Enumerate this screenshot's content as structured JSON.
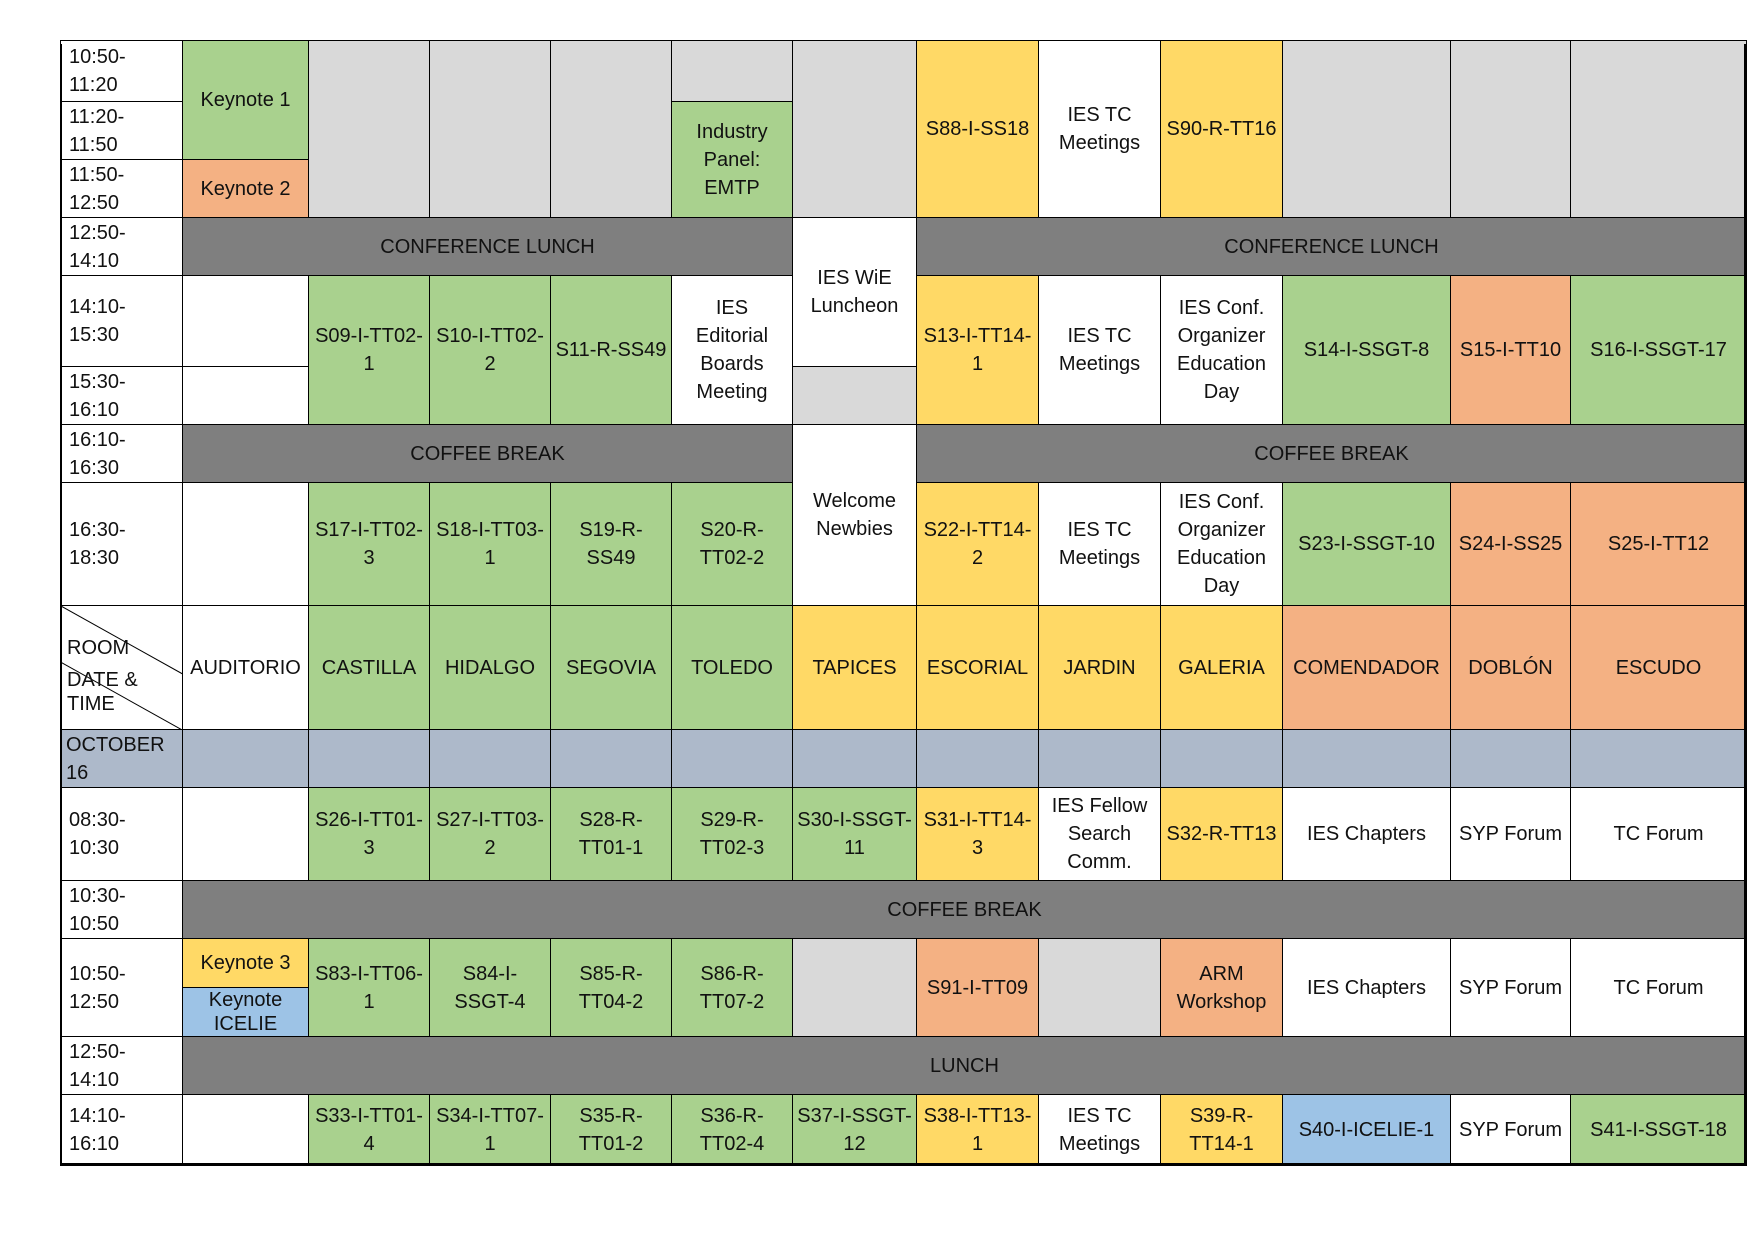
{
  "colors": {
    "green": "#a9d18e",
    "yellow": "#ffd966",
    "orange": "#f4b183",
    "gray": "#d9d9d9",
    "dark": "#7f7f7f",
    "date": "#adb9ca",
    "blue": "#9dc3e6",
    "white": "#ffffff"
  },
  "header": {
    "room_label": "ROOM",
    "date_time_label": "DATE &\nTIME",
    "rooms": [
      "AUDITORIO",
      "CASTILLA",
      "HIDALGO",
      "SEGOVIA",
      "TOLEDO",
      "TAPICES",
      "ESCORIAL",
      "JARDIN",
      "GALERIA",
      "COMENDADOR",
      "DOBLÓN",
      "ESCUDO"
    ]
  },
  "date_label": "OCTOBER\n16",
  "times": [
    "10:50-\n11:20",
    "11:20-\n11:50",
    "11:50-\n12:50",
    "12:50-\n14:10",
    "14:10-\n15:30",
    "15:30-\n16:10",
    "16:10-\n16:30",
    "16:30-\n18:30",
    "08:30-\n10:30",
    "10:30-\n10:50",
    "10:50-\n12:50",
    "12:50-\n14:10",
    "14:10-\n16:10"
  ],
  "sessions": [
    {
      "text": "Keynote 1",
      "color": "green"
    },
    {
      "text": "Keynote 2",
      "color": "orange"
    },
    {
      "text": "",
      "color": "gray"
    },
    {
      "text": "",
      "color": "gray"
    },
    {
      "text": "",
      "color": "gray"
    },
    {
      "text": "",
      "color": "gray"
    },
    {
      "text": "Industry\nPanel:\nEMTP",
      "color": "green"
    },
    {
      "text": "",
      "color": "gray"
    },
    {
      "text": "S88-I-SS18",
      "color": "yellow"
    },
    {
      "text": "IES TC\nMeetings",
      "color": "white"
    },
    {
      "text": "S90-R-TT16",
      "color": "yellow"
    },
    {
      "text": "",
      "color": "gray"
    },
    {
      "text": "",
      "color": "gray"
    },
    {
      "text": "",
      "color": "gray"
    },
    {
      "text": "CONFERENCE LUNCH",
      "color": "dark"
    },
    {
      "text": "IES WiE\nLuncheon",
      "color": "white"
    },
    {
      "text": "CONFERENCE LUNCH",
      "color": "dark"
    },
    {
      "text": "",
      "color": "white"
    },
    {
      "text": "",
      "color": "white"
    },
    {
      "text": "S09-I-TT02-\n1",
      "color": "green"
    },
    {
      "text": "S10-I-TT02-\n2",
      "color": "green"
    },
    {
      "text": "S11-R-SS49",
      "color": "green"
    },
    {
      "text": "IES\nEditorial\nBoards\nMeeting",
      "color": "white"
    },
    {
      "text": "",
      "color": "gray"
    },
    {
      "text": "S13-I-TT14-\n1",
      "color": "yellow"
    },
    {
      "text": "IES TC\nMeetings",
      "color": "white"
    },
    {
      "text": "IES Conf.\nOrganizer\nEducation\nDay",
      "color": "white"
    },
    {
      "text": "S14-I-SSGT-8",
      "color": "green"
    },
    {
      "text": "S15-I-TT10",
      "color": "orange"
    },
    {
      "text": "S16-I-SSGT-17",
      "color": "green"
    },
    {
      "text": "COFFEE BREAK",
      "color": "dark"
    },
    {
      "text": "Welcome\nNewbies",
      "color": "white"
    },
    {
      "text": "COFFEE BREAK",
      "color": "dark"
    },
    {
      "text": "",
      "color": "white"
    },
    {
      "text": "S17-I-TT02-\n3",
      "color": "green"
    },
    {
      "text": "S18-I-TT03-\n1",
      "color": "green"
    },
    {
      "text": "S19-R-SS49",
      "color": "green"
    },
    {
      "text": "S20-R-\nTT02-2",
      "color": "green"
    },
    {
      "text": "S22-I-TT14-\n2",
      "color": "yellow"
    },
    {
      "text": "IES TC\nMeetings",
      "color": "white"
    },
    {
      "text": "IES Conf.\nOrganizer\nEducation\nDay",
      "color": "white"
    },
    {
      "text": "S23-I-SSGT-10",
      "color": "green"
    },
    {
      "text": "S24-I-SS25",
      "color": "orange"
    },
    {
      "text": "S25-I-TT12",
      "color": "orange"
    },
    {
      "text": "",
      "color": "white"
    },
    {
      "text": "S26-I-TT01-\n3",
      "color": "green"
    },
    {
      "text": "S27-I-TT03-\n2",
      "color": "green"
    },
    {
      "text": "S28-R-\nTT01-1",
      "color": "green"
    },
    {
      "text": "S29-R-\nTT02-3",
      "color": "green"
    },
    {
      "text": "S30-I-SSGT-\n11",
      "color": "green"
    },
    {
      "text": "S31-I-TT14-\n3",
      "color": "yellow"
    },
    {
      "text": "IES Fellow\nSearch\nComm.",
      "color": "white"
    },
    {
      "text": "S32-R-TT13",
      "color": "yellow"
    },
    {
      "text": "IES Chapters",
      "color": "white"
    },
    {
      "text": "SYP Forum",
      "color": "white"
    },
    {
      "text": "TC Forum",
      "color": "white"
    },
    {
      "text": "COFFEE BREAK",
      "color": "dark"
    },
    {
      "text": "Keynote 3",
      "color": "yellow"
    },
    {
      "text": "Keynote\nICELIE",
      "color": "blue"
    },
    {
      "text": "S83-I-TT06-\n1",
      "color": "green"
    },
    {
      "text": "S84-I-\nSSGT-4",
      "color": "green"
    },
    {
      "text": "S85-R-\nTT04-2",
      "color": "green"
    },
    {
      "text": "S86-R-\nTT07-2",
      "color": "green"
    },
    {
      "text": "",
      "color": "gray"
    },
    {
      "text": "S91-I-TT09",
      "color": "orange"
    },
    {
      "text": "",
      "color": "gray"
    },
    {
      "text": "ARM\nWorkshop",
      "color": "orange"
    },
    {
      "text": "IES Chapters",
      "color": "white"
    },
    {
      "text": "SYP Forum",
      "color": "white"
    },
    {
      "text": "TC Forum",
      "color": "white"
    },
    {
      "text": "LUNCH",
      "color": "dark"
    },
    {
      "text": "",
      "color": "white"
    },
    {
      "text": "S33-I-TT01-\n4",
      "color": "green"
    },
    {
      "text": "S34-I-TT07-\n1",
      "color": "green"
    },
    {
      "text": "S35-R-\nTT01-2",
      "color": "green"
    },
    {
      "text": "S36-R-\nTT02-4",
      "color": "green"
    },
    {
      "text": "S37-I-SSGT-\n12",
      "color": "green"
    },
    {
      "text": "S38-I-TT13-\n1",
      "color": "yellow"
    },
    {
      "text": "IES TC\nMeetings",
      "color": "white"
    },
    {
      "text": "S39-R-\nTT14-1",
      "color": "yellow"
    },
    {
      "text": "S40-I-ICELIE-1",
      "color": "blue"
    },
    {
      "text": "SYP Forum",
      "color": "white"
    },
    {
      "text": "S41-I-SSGT-18",
      "color": "green"
    }
  ]
}
